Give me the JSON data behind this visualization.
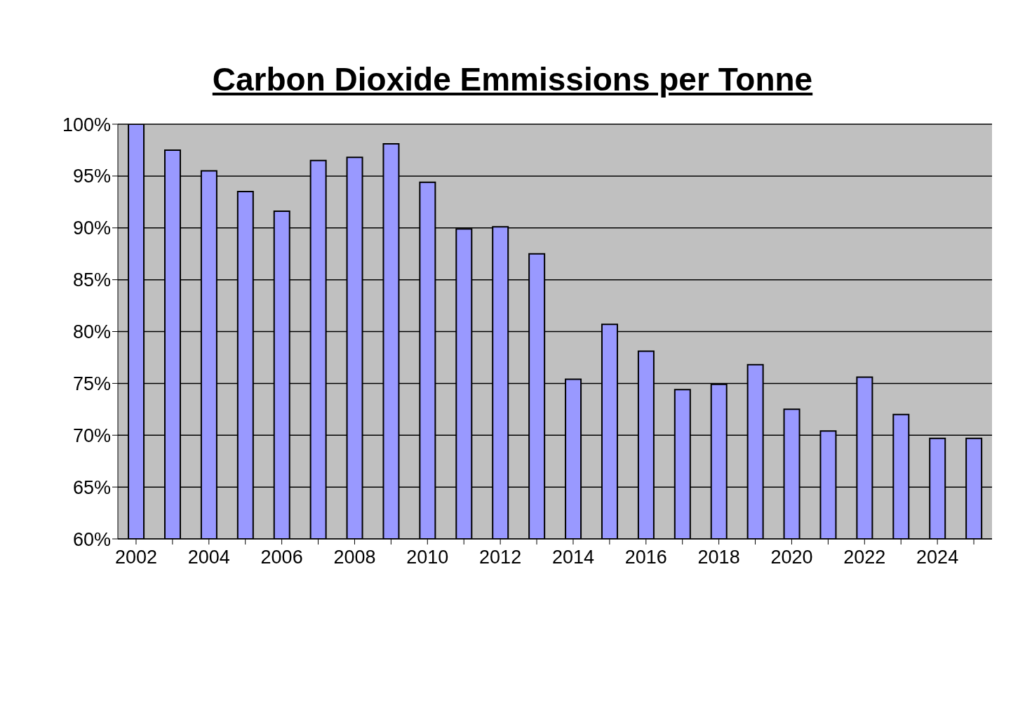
{
  "chart_data": {
    "type": "bar",
    "title": "Carbon Dioxide Emmissions per Tonne",
    "categories": [
      "2002",
      null,
      "2004",
      null,
      "2006",
      null,
      "2008",
      null,
      "2010",
      null,
      "2012",
      null,
      "2014",
      null,
      "2016",
      null,
      "2018",
      null,
      "2020",
      null,
      "2022",
      null,
      "2024",
      null
    ],
    "values": [
      100,
      97.5,
      95.5,
      93.5,
      91.6,
      96.5,
      96.8,
      98.1,
      94.4,
      89.9,
      90.1,
      87.5,
      75.4,
      80.7,
      78.1,
      74.4,
      74.9,
      76.8,
      72.5,
      70.4,
      75.6,
      72.0,
      69.7,
      69.7
    ],
    "color": "#9999ff",
    "ylim": [
      60,
      100
    ],
    "yticks": [
      {
        "value": 60,
        "label": "60%"
      },
      {
        "value": 65,
        "label": "65%"
      },
      {
        "value": 70,
        "label": "70%"
      },
      {
        "value": 75,
        "label": "75%"
      },
      {
        "value": 80,
        "label": "80%"
      },
      {
        "value": 85,
        "label": "85%"
      },
      {
        "value": 90,
        "label": "90%"
      },
      {
        "value": 95,
        "label": "95%"
      },
      {
        "value": 100,
        "label": "100%"
      }
    ],
    "grid": "y",
    "legend": false
  }
}
